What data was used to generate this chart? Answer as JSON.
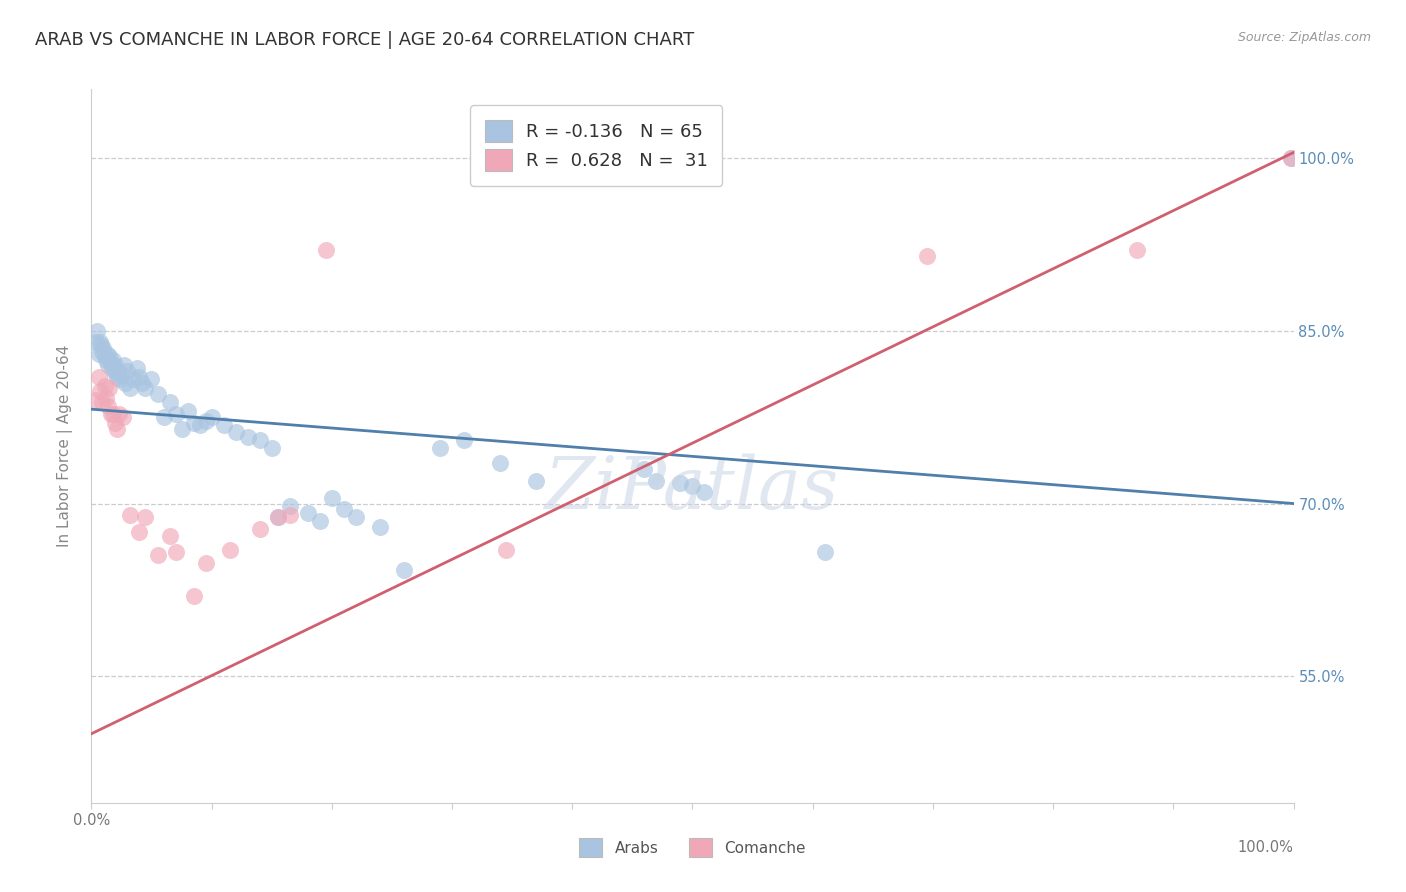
{
  "title": "ARAB VS COMANCHE IN LABOR FORCE | AGE 20-64 CORRELATION CHART",
  "source": "Source: ZipAtlas.com",
  "ylabel": "In Labor Force | Age 20-64",
  "xlim": [
    0.0,
    1.0
  ],
  "ylim": [
    0.44,
    1.06
  ],
  "ytick_positions": [
    0.55,
    0.7,
    0.85,
    1.0
  ],
  "ytick_labels": [
    "55.0%",
    "70.0%",
    "85.0%",
    "100.0%"
  ],
  "xtick_positions": [
    0.0,
    0.1,
    0.2,
    0.3,
    0.4,
    0.5,
    0.6,
    0.7,
    0.8,
    0.9,
    1.0
  ],
  "legend_blue_R": "-0.136",
  "legend_blue_N": "65",
  "legend_pink_R": "0.628",
  "legend_pink_N": "31",
  "blue_dot_color": "#a8c4e0",
  "pink_dot_color": "#f0a8b8",
  "blue_line_color": "#4f7faa",
  "pink_line_color": "#d06070",
  "watermark": "ZiPatlas",
  "blue_points": [
    [
      0.004,
      0.84
    ],
    [
      0.005,
      0.85
    ],
    [
      0.006,
      0.83
    ],
    [
      0.007,
      0.84
    ],
    [
      0.008,
      0.838
    ],
    [
      0.009,
      0.832
    ],
    [
      0.01,
      0.835
    ],
    [
      0.011,
      0.828
    ],
    [
      0.012,
      0.825
    ],
    [
      0.013,
      0.83
    ],
    [
      0.014,
      0.82
    ],
    [
      0.015,
      0.828
    ],
    [
      0.016,
      0.822
    ],
    [
      0.017,
      0.818
    ],
    [
      0.018,
      0.825
    ],
    [
      0.019,
      0.815
    ],
    [
      0.02,
      0.82
    ],
    [
      0.021,
      0.81
    ],
    [
      0.022,
      0.815
    ],
    [
      0.023,
      0.808
    ],
    [
      0.025,
      0.812
    ],
    [
      0.027,
      0.82
    ],
    [
      0.028,
      0.805
    ],
    [
      0.03,
      0.815
    ],
    [
      0.032,
      0.8
    ],
    [
      0.035,
      0.808
    ],
    [
      0.038,
      0.818
    ],
    [
      0.04,
      0.81
    ],
    [
      0.042,
      0.805
    ],
    [
      0.045,
      0.8
    ],
    [
      0.05,
      0.808
    ],
    [
      0.055,
      0.795
    ],
    [
      0.06,
      0.775
    ],
    [
      0.065,
      0.788
    ],
    [
      0.07,
      0.778
    ],
    [
      0.075,
      0.765
    ],
    [
      0.08,
      0.78
    ],
    [
      0.085,
      0.77
    ],
    [
      0.09,
      0.768
    ],
    [
      0.095,
      0.772
    ],
    [
      0.1,
      0.775
    ],
    [
      0.11,
      0.768
    ],
    [
      0.12,
      0.762
    ],
    [
      0.13,
      0.758
    ],
    [
      0.14,
      0.755
    ],
    [
      0.15,
      0.748
    ],
    [
      0.155,
      0.688
    ],
    [
      0.165,
      0.698
    ],
    [
      0.18,
      0.692
    ],
    [
      0.19,
      0.685
    ],
    [
      0.2,
      0.705
    ],
    [
      0.21,
      0.695
    ],
    [
      0.22,
      0.688
    ],
    [
      0.24,
      0.68
    ],
    [
      0.26,
      0.642
    ],
    [
      0.29,
      0.748
    ],
    [
      0.31,
      0.755
    ],
    [
      0.34,
      0.735
    ],
    [
      0.37,
      0.72
    ],
    [
      0.46,
      0.73
    ],
    [
      0.47,
      0.72
    ],
    [
      0.49,
      0.718
    ],
    [
      0.5,
      0.715
    ],
    [
      0.51,
      0.71
    ],
    [
      0.61,
      0.658
    ],
    [
      0.998,
      1.0
    ]
  ],
  "pink_points": [
    [
      0.004,
      0.79
    ],
    [
      0.006,
      0.81
    ],
    [
      0.007,
      0.798
    ],
    [
      0.009,
      0.788
    ],
    [
      0.011,
      0.802
    ],
    [
      0.012,
      0.792
    ],
    [
      0.014,
      0.785
    ],
    [
      0.015,
      0.8
    ],
    [
      0.016,
      0.778
    ],
    [
      0.018,
      0.778
    ],
    [
      0.02,
      0.77
    ],
    [
      0.021,
      0.765
    ],
    [
      0.023,
      0.778
    ],
    [
      0.026,
      0.775
    ],
    [
      0.032,
      0.69
    ],
    [
      0.04,
      0.675
    ],
    [
      0.045,
      0.688
    ],
    [
      0.055,
      0.655
    ],
    [
      0.065,
      0.672
    ],
    [
      0.07,
      0.658
    ],
    [
      0.085,
      0.62
    ],
    [
      0.095,
      0.648
    ],
    [
      0.115,
      0.66
    ],
    [
      0.14,
      0.678
    ],
    [
      0.155,
      0.688
    ],
    [
      0.165,
      0.69
    ],
    [
      0.195,
      0.92
    ],
    [
      0.345,
      0.66
    ],
    [
      0.695,
      0.915
    ],
    [
      0.87,
      0.92
    ],
    [
      0.998,
      1.0
    ]
  ],
  "blue_line": [
    0.0,
    0.782,
    1.0,
    0.7
  ],
  "pink_line": [
    0.0,
    0.5,
    1.0,
    1.005
  ],
  "bg_color": "#ffffff",
  "grid_color": "#cccccc",
  "dot_size": 150,
  "dot_alpha": 0.65
}
